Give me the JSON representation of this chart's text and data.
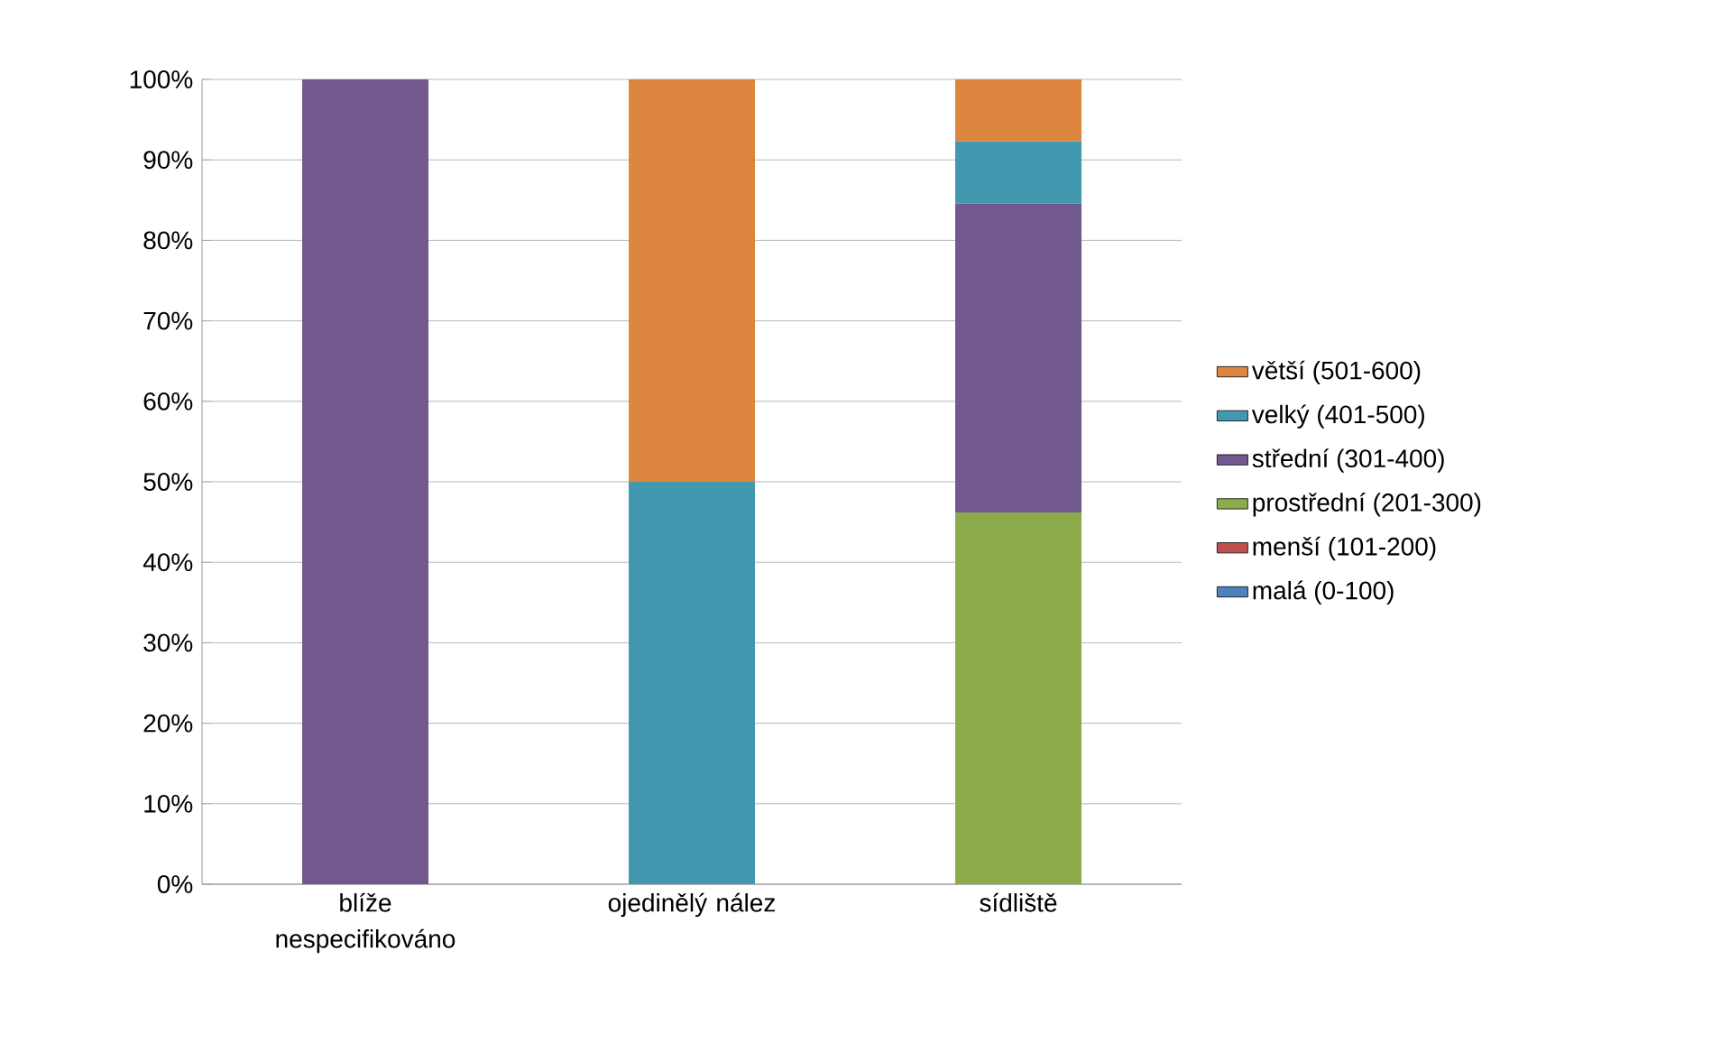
{
  "chart_data": {
    "type": "bar",
    "stacked": true,
    "categories": [
      "blíže nespecifikováno",
      "ojedinělý nález",
      "sídliště"
    ],
    "series": [
      {
        "name": "malá (0-100)",
        "color": "#4f81bd",
        "values": [
          0,
          0,
          0
        ]
      },
      {
        "name": "menší (101-200)",
        "color": "#c0504d",
        "values": [
          0,
          0,
          0
        ]
      },
      {
        "name": "prostřední (201-300)",
        "color": "#8eab4b",
        "values": [
          0,
          0,
          46.2
        ]
      },
      {
        "name": "střední (301-400)",
        "color": "#71588f",
        "values": [
          100,
          0,
          38.4
        ]
      },
      {
        "name": "velký (401-500)",
        "color": "#4198af",
        "values": [
          0,
          50,
          7.7
        ]
      },
      {
        "name": "větší (501-600)",
        "color": "#dd8640",
        "values": [
          0,
          50,
          7.7
        ]
      }
    ],
    "ylim": [
      0,
      100
    ],
    "yticks": [
      {
        "value": 0,
        "label": "0%"
      },
      {
        "value": 10,
        "label": "10%"
      },
      {
        "value": 20,
        "label": "20%"
      },
      {
        "value": 30,
        "label": "30%"
      },
      {
        "value": 40,
        "label": "40%"
      },
      {
        "value": 50,
        "label": "50%"
      },
      {
        "value": 60,
        "label": "60%"
      },
      {
        "value": 70,
        "label": "70%"
      },
      {
        "value": 80,
        "label": "80%"
      },
      {
        "value": 90,
        "label": "90%"
      },
      {
        "value": 100,
        "label": "100%"
      }
    ],
    "grid": "y",
    "legend": "right"
  }
}
